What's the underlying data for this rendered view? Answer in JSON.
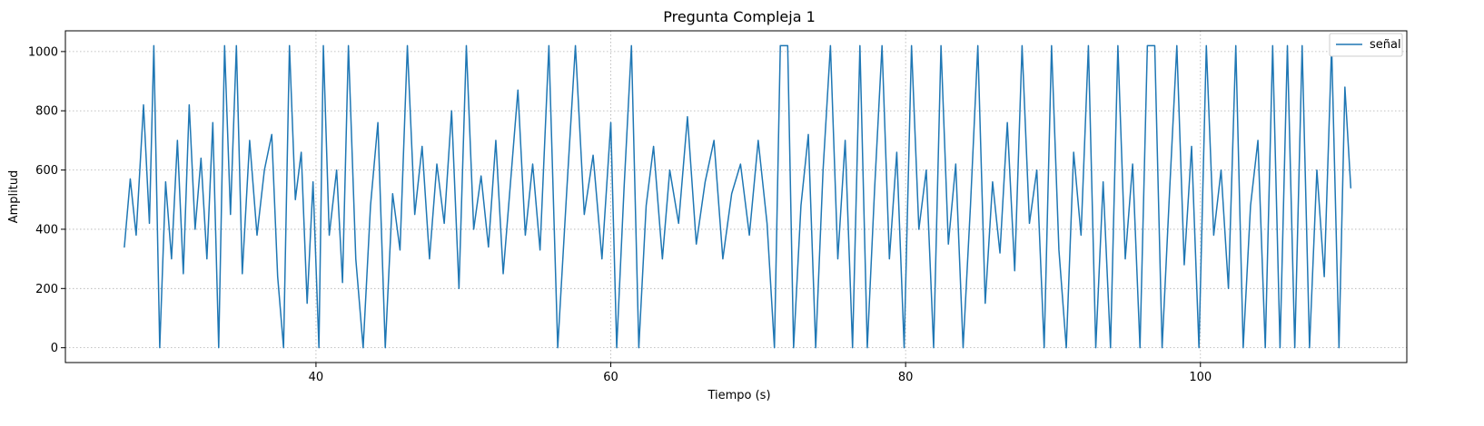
{
  "chart_data": {
    "type": "line",
    "title": "Pregunta Compleja 1",
    "xlabel": "Tiempo (s)",
    "ylabel": "Amplitud",
    "xlim": [
      23,
      114
    ],
    "ylim": [
      -50,
      1070
    ],
    "x_ticks": [
      40,
      60,
      80,
      100
    ],
    "y_ticks": [
      0,
      200,
      400,
      600,
      800,
      1000
    ],
    "grid": true,
    "legend_placement": "top-right",
    "series": [
      {
        "name": "señal",
        "color": "#1f77b4",
        "x_range": [
          27.0,
          110.2
        ],
        "y_range": [
          0,
          1020
        ],
        "points": [
          [
            27.0,
            340
          ],
          [
            27.4,
            570
          ],
          [
            27.8,
            380
          ],
          [
            28.3,
            820
          ],
          [
            28.7,
            420
          ],
          [
            29.0,
            1020
          ],
          [
            29.4,
            0
          ],
          [
            29.8,
            560
          ],
          [
            30.2,
            300
          ],
          [
            30.6,
            700
          ],
          [
            31.0,
            250
          ],
          [
            31.4,
            820
          ],
          [
            31.8,
            400
          ],
          [
            32.2,
            640
          ],
          [
            32.6,
            300
          ],
          [
            33.0,
            760
          ],
          [
            33.4,
            0
          ],
          [
            33.8,
            1020
          ],
          [
            34.2,
            450
          ],
          [
            34.6,
            1020
          ],
          [
            35.0,
            250
          ],
          [
            35.5,
            700
          ],
          [
            36.0,
            380
          ],
          [
            36.5,
            600
          ],
          [
            37.0,
            720
          ],
          [
            37.4,
            240
          ],
          [
            37.8,
            0
          ],
          [
            38.2,
            1020
          ],
          [
            38.6,
            500
          ],
          [
            39.0,
            660
          ],
          [
            39.4,
            150
          ],
          [
            39.8,
            560
          ],
          [
            40.2,
            0
          ],
          [
            40.5,
            1020
          ],
          [
            40.9,
            380
          ],
          [
            41.4,
            600
          ],
          [
            41.8,
            220
          ],
          [
            42.2,
            1020
          ],
          [
            42.7,
            300
          ],
          [
            43.2,
            0
          ],
          [
            43.7,
            480
          ],
          [
            44.2,
            760
          ],
          [
            44.7,
            0
          ],
          [
            45.2,
            520
          ],
          [
            45.7,
            330
          ],
          [
            46.2,
            1020
          ],
          [
            46.7,
            450
          ],
          [
            47.2,
            680
          ],
          [
            47.7,
            300
          ],
          [
            48.2,
            620
          ],
          [
            48.7,
            420
          ],
          [
            49.2,
            800
          ],
          [
            49.7,
            200
          ],
          [
            50.2,
            1020
          ],
          [
            50.7,
            400
          ],
          [
            51.2,
            580
          ],
          [
            51.7,
            340
          ],
          [
            52.2,
            700
          ],
          [
            52.7,
            250
          ],
          [
            53.2,
            560
          ],
          [
            53.7,
            870
          ],
          [
            54.2,
            380
          ],
          [
            54.7,
            620
          ],
          [
            55.2,
            330
          ],
          [
            55.8,
            1020
          ],
          [
            56.4,
            0
          ],
          [
            57.0,
            520
          ],
          [
            57.6,
            1020
          ],
          [
            58.2,
            450
          ],
          [
            58.8,
            650
          ],
          [
            59.4,
            300
          ],
          [
            60.0,
            760
          ],
          [
            60.4,
            0
          ],
          [
            60.9,
            540
          ],
          [
            61.4,
            1020
          ],
          [
            61.9,
            0
          ],
          [
            62.4,
            480
          ],
          [
            62.9,
            680
          ],
          [
            63.5,
            300
          ],
          [
            64.0,
            600
          ],
          [
            64.6,
            420
          ],
          [
            65.2,
            780
          ],
          [
            65.8,
            350
          ],
          [
            66.4,
            560
          ],
          [
            67.0,
            700
          ],
          [
            67.6,
            300
          ],
          [
            68.2,
            520
          ],
          [
            68.8,
            620
          ],
          [
            69.4,
            380
          ],
          [
            70.0,
            700
          ],
          [
            70.6,
            420
          ],
          [
            71.1,
            0
          ],
          [
            71.5,
            1020
          ],
          [
            72.0,
            1020
          ],
          [
            72.4,
            0
          ],
          [
            72.9,
            480
          ],
          [
            73.4,
            720
          ],
          [
            73.9,
            0
          ],
          [
            74.4,
            600
          ],
          [
            74.9,
            1020
          ],
          [
            75.4,
            300
          ],
          [
            75.9,
            700
          ],
          [
            76.4,
            0
          ],
          [
            76.9,
            1020
          ],
          [
            77.4,
            0
          ],
          [
            77.9,
            540
          ],
          [
            78.4,
            1020
          ],
          [
            78.9,
            300
          ],
          [
            79.4,
            660
          ],
          [
            79.9,
            0
          ],
          [
            80.4,
            1020
          ],
          [
            80.9,
            400
          ],
          [
            81.4,
            600
          ],
          [
            81.9,
            0
          ],
          [
            82.4,
            1020
          ],
          [
            82.9,
            350
          ],
          [
            83.4,
            620
          ],
          [
            83.9,
            0
          ],
          [
            84.4,
            480
          ],
          [
            84.9,
            1020
          ],
          [
            85.4,
            150
          ],
          [
            85.9,
            560
          ],
          [
            86.4,
            320
          ],
          [
            86.9,
            760
          ],
          [
            87.4,
            260
          ],
          [
            87.9,
            1020
          ],
          [
            88.4,
            420
          ],
          [
            88.9,
            600
          ],
          [
            89.4,
            0
          ],
          [
            89.9,
            1020
          ],
          [
            90.4,
            330
          ],
          [
            90.9,
            0
          ],
          [
            91.4,
            660
          ],
          [
            91.9,
            380
          ],
          [
            92.4,
            1020
          ],
          [
            92.9,
            0
          ],
          [
            93.4,
            560
          ],
          [
            93.9,
            0
          ],
          [
            94.4,
            1020
          ],
          [
            94.9,
            300
          ],
          [
            95.4,
            620
          ],
          [
            95.9,
            0
          ],
          [
            96.4,
            1020
          ],
          [
            96.9,
            1020
          ],
          [
            97.4,
            0
          ],
          [
            97.9,
            520
          ],
          [
            98.4,
            1020
          ],
          [
            98.9,
            280
          ],
          [
            99.4,
            680
          ],
          [
            99.9,
            0
          ],
          [
            100.4,
            1020
          ],
          [
            100.9,
            380
          ],
          [
            101.4,
            600
          ],
          [
            101.9,
            200
          ],
          [
            102.4,
            1020
          ],
          [
            102.9,
            0
          ],
          [
            103.4,
            480
          ],
          [
            103.9,
            700
          ],
          [
            104.4,
            0
          ],
          [
            104.9,
            1020
          ],
          [
            105.4,
            0
          ],
          [
            105.9,
            1020
          ],
          [
            106.4,
            0
          ],
          [
            106.9,
            1020
          ],
          [
            107.4,
            0
          ],
          [
            107.9,
            600
          ],
          [
            108.4,
            240
          ],
          [
            108.9,
            1020
          ],
          [
            109.4,
            0
          ],
          [
            109.8,
            880
          ],
          [
            110.2,
            540
          ]
        ]
      }
    ]
  }
}
